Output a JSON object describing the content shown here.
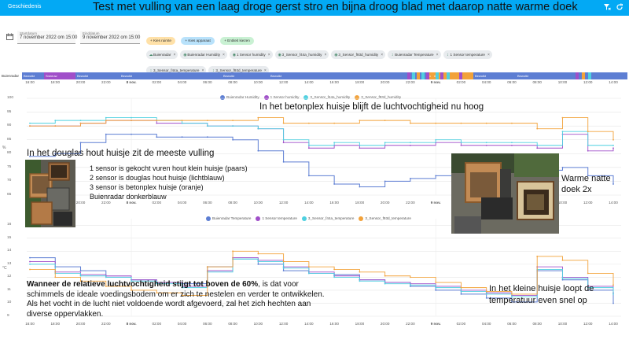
{
  "app": {
    "title": "Geschiedenis"
  },
  "overlay_title": "Test met vulling van een laag droge gerst stro en bijna droog blad met daarop natte warme doek",
  "header_icons": [
    "filter-remove-icon",
    "refresh-icon"
  ],
  "date_range": {
    "start": {
      "label": "Startdatum",
      "value": "7 november 2022 om 15:00"
    },
    "end": {
      "label": "Einddatum",
      "value": "9 november 2022 om 15:00"
    }
  },
  "actions": [
    {
      "label": "Kies ruimte",
      "icon": "plus-icon"
    },
    {
      "label": "Kies apparaat",
      "icon": "plus-icon"
    },
    {
      "label": "Entiteit kiezen",
      "icon": "plus-icon"
    }
  ],
  "entity_chips": [
    {
      "label": "Buienradar",
      "icon": "weather-icon"
    },
    {
      "label": "Buienradar Humidity",
      "icon": "water-percent-icon"
    },
    {
      "label": "1 Sensor humidity",
      "icon": "water-percent-icon"
    },
    {
      "label": "3_Sensor_f44a_humidity",
      "icon": "water-percent-icon"
    },
    {
      "label": "3_Sensor_f93d_humidity",
      "icon": "water-percent-icon"
    },
    {
      "label": "Buienradar Temperature",
      "icon": "thermometer-icon"
    },
    {
      "label": "1 Sensor temperature",
      "icon": "thermometer-icon"
    },
    {
      "label": "3_Sensor_f44a_temperature",
      "icon": "thermometer-icon"
    },
    {
      "label": "3_Sensor_f93d_temperature",
      "icon": "thermometer-icon"
    }
  ],
  "timeline": {
    "label": "Buienradar",
    "segments": [
      {
        "label": "Bewolkt",
        "color": "#5d7ed3"
      },
      {
        "label": "Sneeuw",
        "color": "#a04fc9"
      },
      {
        "label": "Bewolkt",
        "color": "#5d7ed3"
      },
      {
        "label": "Bewolkt",
        "color": "#5d7ed3"
      },
      {
        "label": "Bewolkt",
        "color": "#5d7ed3"
      },
      {
        "label": "Bewolkt",
        "color": "#5d7ed3"
      },
      {
        "label": "Zonnig",
        "color": "#f2a23a"
      },
      {
        "label": "Bewolkt",
        "color": "#5d7ed3"
      },
      {
        "label": "Bewolkt",
        "color": "#5d7ed3"
      }
    ]
  },
  "x_ticks": [
    "16:00",
    "18:00",
    "20:00",
    "22:00",
    "8 nov.",
    "02:00",
    "04:00",
    "06:00",
    "08:00",
    "10:00",
    "12:00",
    "14:00",
    "16:00",
    "18:00",
    "20:00",
    "22:00",
    "9 nov.",
    "02:00",
    "04:00",
    "06:00",
    "08:00",
    "10:00",
    "12:00",
    "14:00"
  ],
  "humidity_chart": {
    "unit": "%",
    "y_ticks": [
      "100",
      "95",
      "90",
      "85",
      "80",
      "75",
      "70",
      "65"
    ],
    "ylim": [
      65,
      100
    ],
    "legend": [
      {
        "name": "Buienradar Humidity",
        "color": "#5d7ed3"
      },
      {
        "name": "1 Sensor humidity",
        "color": "#a04fc9"
      },
      {
        "name": "3_Sensor_f44a_humidity",
        "color": "#4fd0e0"
      },
      {
        "name": "3_Sensor_f93d_humidity",
        "color": "#f2a23a"
      }
    ]
  },
  "temperature_chart": {
    "unit": "°C",
    "y_ticks": [
      "16",
      "15",
      "14",
      "13",
      "12",
      "11",
      "10",
      "9"
    ],
    "ylim": [
      9,
      16.5
    ],
    "legend": [
      {
        "name": "Buienradar Temperature",
        "color": "#5d7ed3"
      },
      {
        "name": "1 Sensor temperature",
        "color": "#a04fc9"
      },
      {
        "name": "3_Sensor_f44a_temperature",
        "color": "#4fd0e0"
      },
      {
        "name": "3_Sensor_f93d_temperature",
        "color": "#f2a23a"
      }
    ]
  },
  "chart_data": [
    {
      "type": "line",
      "x": [
        "16:00",
        "18:00",
        "20:00",
        "22:00",
        "8 nov.",
        "02:00",
        "04:00",
        "06:00",
        "08:00",
        "10:00",
        "12:00",
        "14:00",
        "16:00",
        "18:00",
        "20:00",
        "22:00",
        "9 nov.",
        "02:00",
        "04:00",
        "06:00",
        "08:00",
        "10:00",
        "12:00",
        "14:00"
      ],
      "ylabel": "%",
      "ylim": [
        65,
        100
      ],
      "series": [
        {
          "name": "Buienradar Humidity",
          "values": [
            79,
            80,
            84,
            87,
            87,
            86,
            86,
            86,
            85,
            81,
            77,
            72,
            69,
            68,
            70,
            71,
            72,
            73,
            73,
            73,
            74,
            75,
            72,
            69
          ]
        },
        {
          "name": "1 Sensor humidity",
          "values": [
            90,
            90,
            91,
            92,
            92,
            91,
            91,
            90,
            90,
            89,
            84,
            82,
            83,
            82,
            83,
            83,
            84,
            83,
            83,
            83,
            82,
            87,
            81,
            82
          ]
        },
        {
          "name": "3_Sensor_f44a_humidity",
          "values": [
            91,
            92,
            92,
            93,
            93,
            92,
            91,
            90,
            90,
            89,
            85,
            83,
            84,
            83,
            84,
            84,
            85,
            84,
            84,
            84,
            83,
            88,
            83,
            83
          ]
        },
        {
          "name": "3_Sensor_f93d_humidity",
          "values": [
            90,
            90,
            91,
            92,
            92,
            92,
            92,
            92,
            92,
            93,
            91,
            91,
            91,
            92,
            92,
            91,
            91,
            91,
            91,
            91,
            89,
            93,
            88,
            85
          ]
        }
      ]
    },
    {
      "type": "line",
      "x": [
        "16:00",
        "18:00",
        "20:00",
        "22:00",
        "8 nov.",
        "02:00",
        "04:00",
        "06:00",
        "08:00",
        "10:00",
        "12:00",
        "14:00",
        "16:00",
        "18:00",
        "20:00",
        "22:00",
        "9 nov.",
        "02:00",
        "04:00",
        "06:00",
        "08:00",
        "10:00",
        "12:00",
        "14:00"
      ],
      "ylabel": "°C",
      "ylim": [
        9,
        16.5
      ],
      "series": [
        {
          "name": "Buienradar Temperature",
          "values": [
            13.5,
            12.8,
            12.5,
            12.0,
            11.8,
            11.6,
            11.5,
            12.8,
            13.4,
            13.0,
            12.5,
            12.3,
            12.2,
            11.8,
            11.6,
            11.3,
            11.0,
            10.7,
            10.4,
            10.1,
            12.5,
            11.8,
            11.0,
            10.0
          ]
        },
        {
          "name": "1 Sensor temperature",
          "values": [
            13.2,
            12.4,
            12.2,
            12.1,
            11.8,
            11.6,
            11.3,
            12.5,
            13.5,
            13.3,
            12.8,
            12.4,
            12.1,
            11.8,
            11.6,
            11.5,
            11.3,
            11.0,
            10.8,
            10.6,
            12.8,
            12.0,
            11.3,
            10.8
          ]
        },
        {
          "name": "3_Sensor_f44a_temperature",
          "values": [
            13.0,
            12.3,
            12.1,
            12.0,
            11.7,
            11.5,
            11.2,
            12.4,
            13.4,
            13.2,
            12.7,
            12.3,
            12.0,
            11.7,
            11.5,
            11.4,
            11.2,
            10.9,
            10.7,
            10.5,
            12.6,
            11.9,
            11.2,
            10.7
          ]
        },
        {
          "name": "3_Sensor_f93d_temperature",
          "values": [
            12.6,
            12.0,
            11.7,
            11.3,
            11.0,
            10.8,
            10.6,
            12.8,
            14.0,
            13.8,
            13.2,
            12.8,
            12.6,
            12.4,
            12.1,
            12.0,
            11.6,
            11.2,
            10.9,
            10.7,
            13.6,
            13.3,
            12.3,
            11.4
          ]
        }
      ]
    }
  ],
  "annotations": {
    "betonplex": "In het betonplex huisje blijft de luchtvochtigheid nu hoog",
    "douglas": "In het douglas hout huisje zit de meeste vulling",
    "sensor_list": [
      "1 sensor is gekocht vuren hout klein huisje (paars)",
      "2 sensor is douglas hout huisje (lichtblauw)",
      "3 sensor is betonplex huisje (oranje)",
      "Buienradar donkerblauw"
    ],
    "warme_doek_1": "Warme natte",
    "warme_doek_2": "doek 2x",
    "kleine_huisje_1": "In het kleine huisje loopt de",
    "kleine_huisje_2": "temperatuur even snel op",
    "luchtvochtigheid_bold": "Wanneer de relatieve luchtvochtigheid stijgt tot boven de 60%",
    "luchtvochtigheid_rest": ", is dat voor schimmels de ideale voedingsbodem om er zich te nestelen en verder te ontwikkelen. Als het vocht in de lucht niet voldoende wordt afgevoerd, zal het zich hechten aan diverse oppervlakken."
  }
}
